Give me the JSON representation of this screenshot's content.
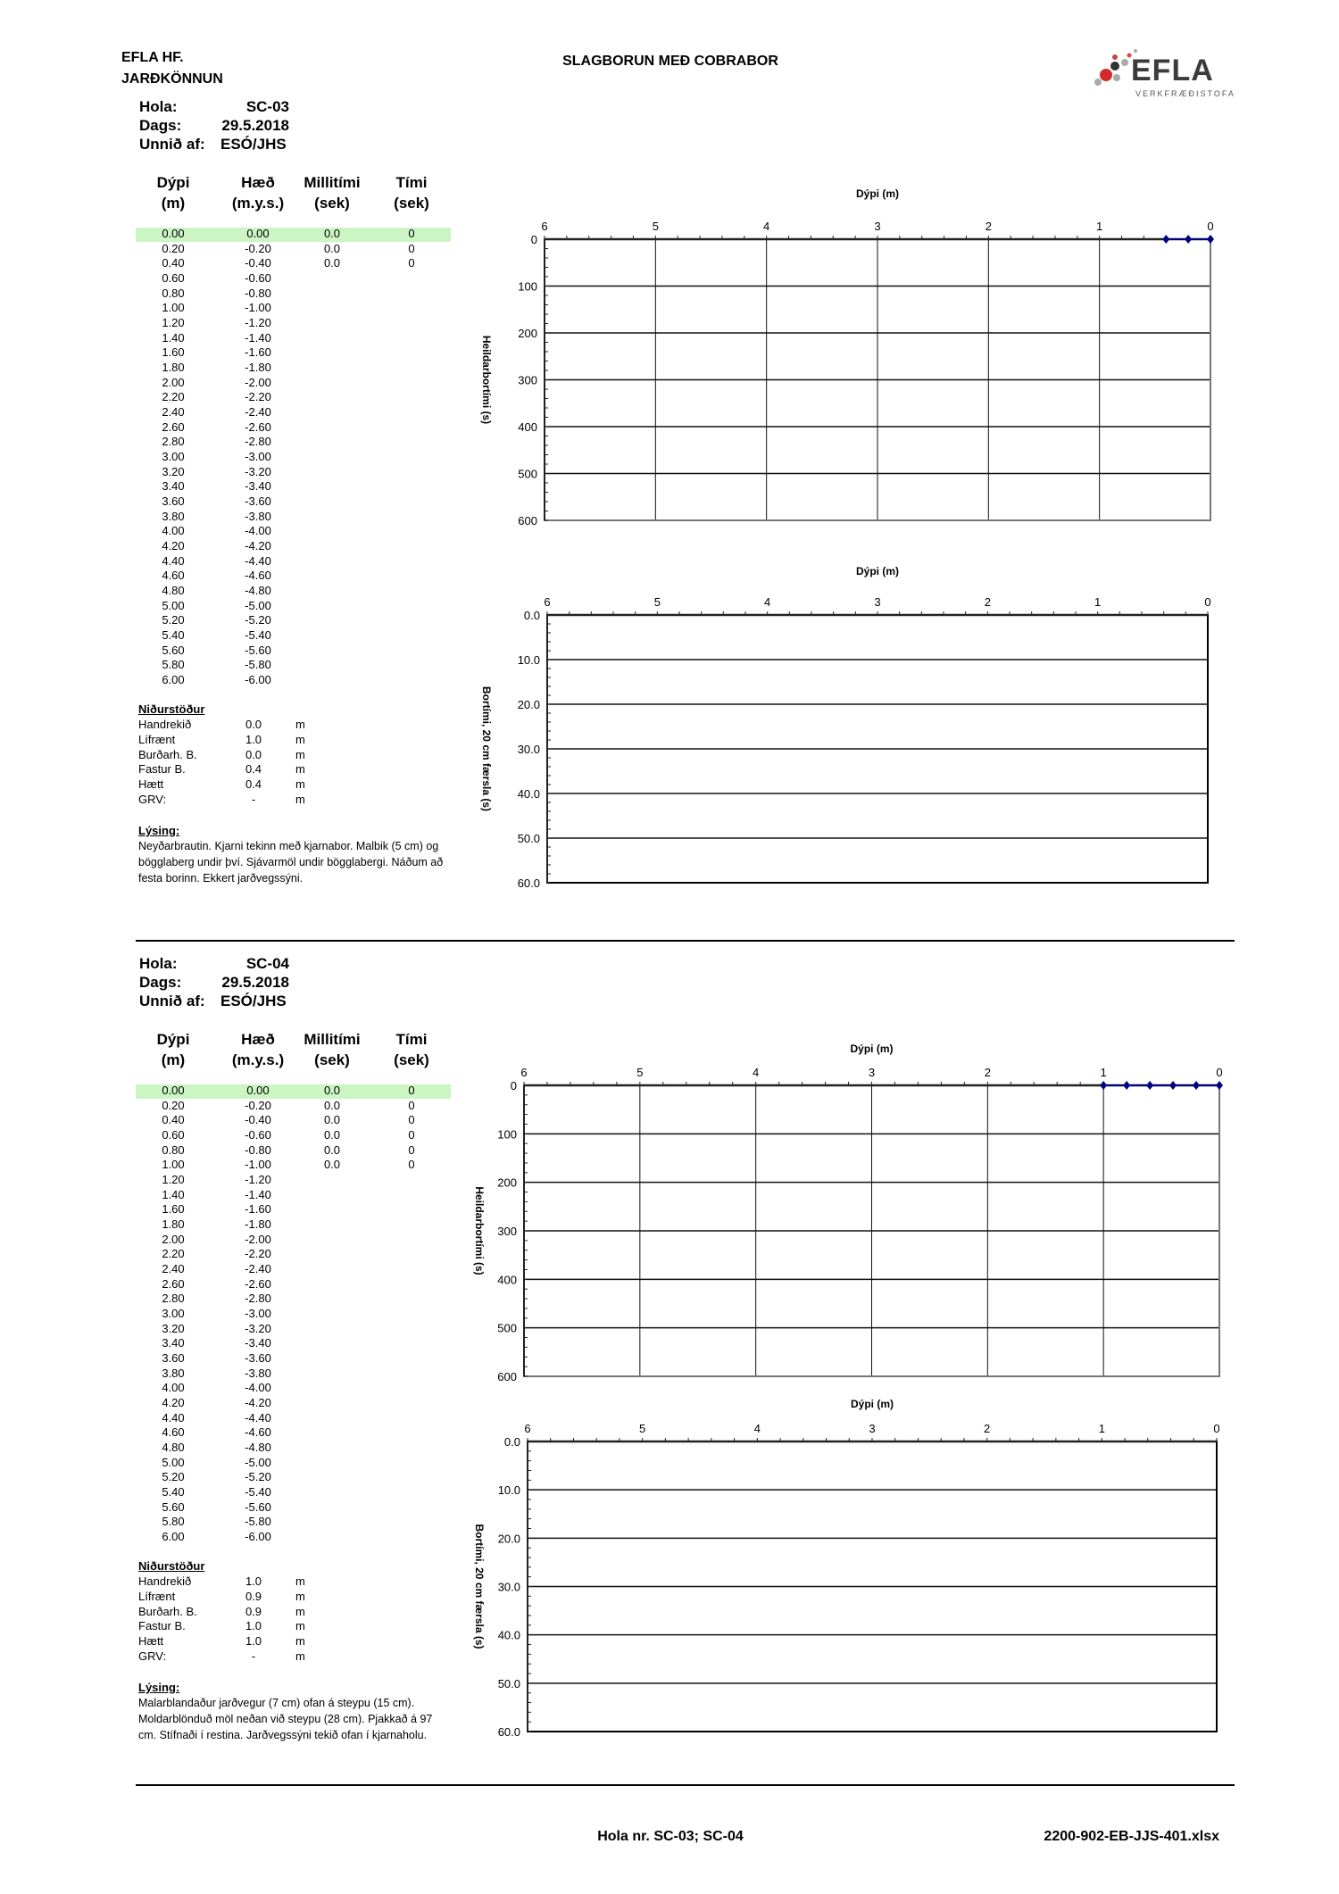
{
  "header": {
    "company": "EFLA HF.",
    "department": "JARÐKÖNNUN",
    "title": "SLAGBORUN MEÐ COBRABOR",
    "logo_text": "EFLA",
    "logo_subtext": "VERKFRÆÐISTOFA"
  },
  "labels": {
    "hola": "Hola:",
    "dags": "Dags:",
    "unnid_af": "Unnið af:",
    "table_headers": [
      [
        "Dýpi",
        "(m)"
      ],
      [
        "Hæð",
        "(m.y.s.)"
      ],
      [
        "Millitími",
        "(sek)"
      ],
      [
        "Tími",
        "(sek)"
      ]
    ],
    "results_title": "Niðurstöður",
    "description_title": "Lýsing:"
  },
  "holes": [
    {
      "hola": "SC-03",
      "dags": "29.5.2018",
      "unnid_af": "ESÓ/JHS",
      "rows": [
        [
          "0.00",
          "0.00",
          "0.0",
          "0"
        ],
        [
          "0.20",
          "-0.20",
          "0.0",
          "0"
        ],
        [
          "0.40",
          "-0.40",
          "0.0",
          "0"
        ],
        [
          "0.60",
          "-0.60",
          "",
          ""
        ],
        [
          "0.80",
          "-0.80",
          "",
          ""
        ],
        [
          "1.00",
          "-1.00",
          "",
          ""
        ],
        [
          "1.20",
          "-1.20",
          "",
          ""
        ],
        [
          "1.40",
          "-1.40",
          "",
          ""
        ],
        [
          "1.60",
          "-1.60",
          "",
          ""
        ],
        [
          "1.80",
          "-1.80",
          "",
          ""
        ],
        [
          "2.00",
          "-2.00",
          "",
          ""
        ],
        [
          "2.20",
          "-2.20",
          "",
          ""
        ],
        [
          "2.40",
          "-2.40",
          "",
          ""
        ],
        [
          "2.60",
          "-2.60",
          "",
          ""
        ],
        [
          "2.80",
          "-2.80",
          "",
          ""
        ],
        [
          "3.00",
          "-3.00",
          "",
          ""
        ],
        [
          "3.20",
          "-3.20",
          "",
          ""
        ],
        [
          "3.40",
          "-3.40",
          "",
          ""
        ],
        [
          "3.60",
          "-3.60",
          "",
          ""
        ],
        [
          "3.80",
          "-3.80",
          "",
          ""
        ],
        [
          "4.00",
          "-4.00",
          "",
          ""
        ],
        [
          "4.20",
          "-4.20",
          "",
          ""
        ],
        [
          "4.40",
          "-4.40",
          "",
          ""
        ],
        [
          "4.60",
          "-4.60",
          "",
          ""
        ],
        [
          "4.80",
          "-4.80",
          "",
          ""
        ],
        [
          "5.00",
          "-5.00",
          "",
          ""
        ],
        [
          "5.20",
          "-5.20",
          "",
          ""
        ],
        [
          "5.40",
          "-5.40",
          "",
          ""
        ],
        [
          "5.60",
          "-5.60",
          "",
          ""
        ],
        [
          "5.80",
          "-5.80",
          "",
          ""
        ],
        [
          "6.00",
          "-6.00",
          "",
          ""
        ]
      ],
      "results": [
        {
          "label": "Handrekið",
          "value": "0.0",
          "unit": "m"
        },
        {
          "label": "Lífrænt",
          "value": "1.0",
          "unit": "m"
        },
        {
          "label": "Burðarh. B.",
          "value": "0.0",
          "unit": "m"
        },
        {
          "label": "Fastur B.",
          "value": "0.4",
          "unit": "m"
        },
        {
          "label": "Hætt",
          "value": "0.4",
          "unit": "m"
        },
        {
          "label": "GRV:",
          "value": "-",
          "unit": "m"
        }
      ],
      "description": "Neyðarbrautin. Kjarni tekinn með kjarnabor. Malbik (5 cm) og bögglaberg undir því. Sjávarmöl undir bögglabergi. Náðum að festa borinn. Ekkert jarðvegssýni."
    },
    {
      "hola": "SC-04",
      "dags": "29.5.2018",
      "unnid_af": "ESÓ/JHS",
      "rows": [
        [
          "0.00",
          "0.00",
          "0.0",
          "0"
        ],
        [
          "0.20",
          "-0.20",
          "0.0",
          "0"
        ],
        [
          "0.40",
          "-0.40",
          "0.0",
          "0"
        ],
        [
          "0.60",
          "-0.60",
          "0.0",
          "0"
        ],
        [
          "0.80",
          "-0.80",
          "0.0",
          "0"
        ],
        [
          "1.00",
          "-1.00",
          "0.0",
          "0"
        ],
        [
          "1.20",
          "-1.20",
          "",
          ""
        ],
        [
          "1.40",
          "-1.40",
          "",
          ""
        ],
        [
          "1.60",
          "-1.60",
          "",
          ""
        ],
        [
          "1.80",
          "-1.80",
          "",
          ""
        ],
        [
          "2.00",
          "-2.00",
          "",
          ""
        ],
        [
          "2.20",
          "-2.20",
          "",
          ""
        ],
        [
          "2.40",
          "-2.40",
          "",
          ""
        ],
        [
          "2.60",
          "-2.60",
          "",
          ""
        ],
        [
          "2.80",
          "-2.80",
          "",
          ""
        ],
        [
          "3.00",
          "-3.00",
          "",
          ""
        ],
        [
          "3.20",
          "-3.20",
          "",
          ""
        ],
        [
          "3.40",
          "-3.40",
          "",
          ""
        ],
        [
          "3.60",
          "-3.60",
          "",
          ""
        ],
        [
          "3.80",
          "-3.80",
          "",
          ""
        ],
        [
          "4.00",
          "-4.00",
          "",
          ""
        ],
        [
          "4.20",
          "-4.20",
          "",
          ""
        ],
        [
          "4.40",
          "-4.40",
          "",
          ""
        ],
        [
          "4.60",
          "-4.60",
          "",
          ""
        ],
        [
          "4.80",
          "-4.80",
          "",
          ""
        ],
        [
          "5.00",
          "-5.00",
          "",
          ""
        ],
        [
          "5.20",
          "-5.20",
          "",
          ""
        ],
        [
          "5.40",
          "-5.40",
          "",
          ""
        ],
        [
          "5.60",
          "-5.60",
          "",
          ""
        ],
        [
          "5.80",
          "-5.80",
          "",
          ""
        ],
        [
          "6.00",
          "-6.00",
          "",
          ""
        ]
      ],
      "results": [
        {
          "label": "Handrekið",
          "value": "1.0",
          "unit": "m"
        },
        {
          "label": "Lífrænt",
          "value": "0.9",
          "unit": "m"
        },
        {
          "label": "Burðarh. B.",
          "value": "0.9",
          "unit": "m"
        },
        {
          "label": "Fastur B.",
          "value": "1.0",
          "unit": "m"
        },
        {
          "label": "Hætt",
          "value": "1.0",
          "unit": "m"
        },
        {
          "label": "GRV:",
          "value": "-",
          "unit": "m"
        }
      ],
      "description": "Malarblandaður jarðvegur (7 cm) ofan á steypu (15 cm). Moldarblönduð möl neðan við steypu (28 cm). Pjakkað á 97 cm. Stífnaði í restina. Jarðvegssýni tekið ofan í kjarnaholu."
    }
  ],
  "colors": {
    "highlight_row": "#ccf5c4",
    "series": "#000080"
  },
  "chart_data": [
    {
      "type": "line",
      "xlabel": "Dýpi (m)",
      "ylabel": "Heildarbortími (s)",
      "xlim": [
        6,
        0
      ],
      "ylim": [
        0,
        600
      ],
      "y_inverted": true,
      "x_axis_position": "top",
      "grid": "both",
      "x_ticks": [
        "6",
        "5",
        "4",
        "3",
        "2",
        "1",
        "0"
      ],
      "y_ticks": [
        "0",
        "100",
        "200",
        "300",
        "400",
        "500",
        "600"
      ],
      "series": [
        {
          "x": [
            0,
            0.2,
            0.4
          ],
          "y": [
            0,
            0,
            0
          ],
          "marker": "diamond",
          "color": "#000080"
        }
      ]
    },
    {
      "type": "line",
      "xlabel": "Dýpi (m)",
      "ylabel": "Bortími,  20 cm færsla (s)",
      "xlim": [
        6,
        0
      ],
      "ylim": [
        0,
        60
      ],
      "y_inverted": true,
      "x_axis_position": "top",
      "grid": "horizontal",
      "x_ticks": [
        "6",
        "5",
        "4",
        "3",
        "2",
        "1",
        "0"
      ],
      "y_ticks": [
        "0.0",
        "10.0",
        "20.0",
        "30.0",
        "40.0",
        "50.0",
        "60.0"
      ],
      "series": []
    },
    {
      "type": "line",
      "xlabel": "Dýpi (m)",
      "ylabel": "Heildarbortími (s)",
      "xlim": [
        6,
        0
      ],
      "ylim": [
        0,
        600
      ],
      "y_inverted": true,
      "x_axis_position": "top",
      "grid": "both",
      "x_ticks": [
        "6",
        "5",
        "4",
        "3",
        "2",
        "1",
        "0"
      ],
      "y_ticks": [
        "0",
        "100",
        "200",
        "300",
        "400",
        "500",
        "600"
      ],
      "series": [
        {
          "x": [
            0,
            0.2,
            0.4,
            0.6,
            0.8,
            1.0
          ],
          "y": [
            0,
            0,
            0,
            0,
            0,
            0
          ],
          "marker": "diamond",
          "color": "#000080"
        }
      ]
    },
    {
      "type": "line",
      "xlabel": "Dýpi (m)",
      "ylabel": "Bortími,  20 cm færsla (s)",
      "xlim": [
        6,
        0
      ],
      "ylim": [
        0,
        60
      ],
      "y_inverted": true,
      "x_axis_position": "top",
      "grid": "horizontal",
      "x_ticks": [
        "6",
        "5",
        "4",
        "3",
        "2",
        "1",
        "0"
      ],
      "y_ticks": [
        "0.0",
        "10.0",
        "20.0",
        "30.0",
        "40.0",
        "50.0",
        "60.0"
      ],
      "series": []
    }
  ],
  "footer": {
    "hole_numbers": "Hola nr. SC-03; SC-04",
    "file_name": "2200-902-EB-JJS-401.xlsx"
  }
}
